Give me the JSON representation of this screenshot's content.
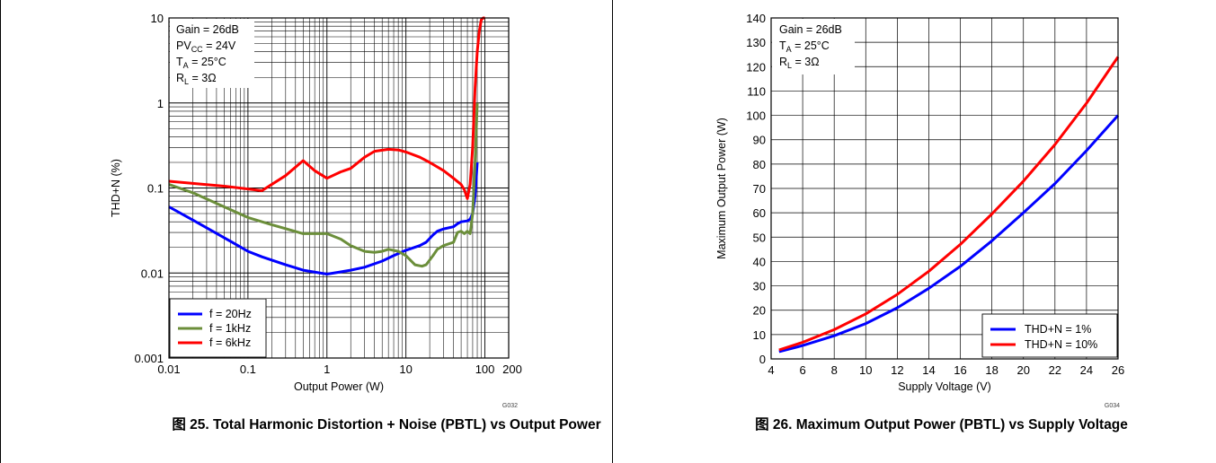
{
  "chart_data": [
    {
      "type": "line",
      "caption": "图 25. Total Harmonic Distortion + Noise (PBTL) vs Output Power",
      "xlabel": "Output Power (W)",
      "ylabel": "THD+N (%)",
      "xscale": "log",
      "yscale": "log",
      "xlim": [
        0.01,
        200
      ],
      "ylim": [
        0.001,
        10
      ],
      "xticks": [
        0.01,
        0.1,
        1,
        10,
        100,
        200
      ],
      "xtick_labels": [
        "0.01",
        "0.1",
        "1",
        "10",
        "100",
        "200"
      ],
      "yticks": [
        0.001,
        0.01,
        0.1,
        1,
        10
      ],
      "ytick_labels": [
        "0.001",
        "0.01",
        "0.1",
        "1",
        "10"
      ],
      "grid": true,
      "code": "G032",
      "legend_position": "bottom-left",
      "annotations": [
        {
          "text": "Gain = 26dB"
        },
        {
          "text": "PV",
          "sub": "CC",
          "rest": " = 24V"
        },
        {
          "text": "T",
          "sub": "A",
          "rest": " = 25°C"
        },
        {
          "text": "R",
          "sub": "L",
          "rest": " = 3Ω"
        }
      ],
      "series": [
        {
          "name": "f = 20Hz",
          "color": "#0000ff",
          "x": [
            0.01,
            0.02,
            0.05,
            0.1,
            0.15,
            0.3,
            0.5,
            1,
            1.5,
            2,
            3,
            5,
            7,
            10,
            15,
            18,
            22,
            25,
            30,
            40,
            45,
            50,
            60,
            65,
            70,
            75,
            80
          ],
          "y": [
            0.06,
            0.042,
            0.026,
            0.018,
            0.0155,
            0.0125,
            0.0108,
            0.0097,
            0.0103,
            0.0108,
            0.0117,
            0.0138,
            0.016,
            0.0185,
            0.021,
            0.023,
            0.028,
            0.031,
            0.033,
            0.035,
            0.038,
            0.04,
            0.041,
            0.043,
            0.05,
            0.08,
            0.2
          ]
        },
        {
          "name": "f = 1kHz",
          "color": "#6b8e3a",
          "x": [
            0.01,
            0.02,
            0.05,
            0.1,
            0.2,
            0.5,
            1,
            1.5,
            2,
            3,
            4,
            5,
            6,
            8,
            10,
            13,
            16,
            18,
            22,
            25,
            30,
            40,
            45,
            50,
            55,
            60,
            65,
            70,
            75,
            80
          ],
          "y": [
            0.11,
            0.088,
            0.06,
            0.045,
            0.037,
            0.029,
            0.029,
            0.025,
            0.021,
            0.018,
            0.0175,
            0.018,
            0.019,
            0.018,
            0.016,
            0.0125,
            0.012,
            0.0125,
            0.016,
            0.019,
            0.021,
            0.023,
            0.03,
            0.031,
            0.029,
            0.031,
            0.029,
            0.05,
            0.2,
            1.0
          ]
        },
        {
          "name": "f = 6kHz",
          "color": "#ff0000",
          "x": [
            0.01,
            0.05,
            0.15,
            0.3,
            0.5,
            0.7,
            1,
            1.5,
            2,
            3,
            4,
            6,
            8,
            10,
            15,
            20,
            30,
            40,
            50,
            55,
            60,
            65,
            70,
            75,
            80,
            85,
            90,
            95,
            100
          ],
          "y": [
            0.12,
            0.105,
            0.093,
            0.14,
            0.21,
            0.16,
            0.13,
            0.155,
            0.17,
            0.23,
            0.27,
            0.285,
            0.28,
            0.265,
            0.23,
            0.2,
            0.16,
            0.13,
            0.11,
            0.095,
            0.075,
            0.11,
            0.3,
            1.5,
            4.0,
            7.0,
            9.5,
            11,
            12
          ]
        }
      ]
    },
    {
      "type": "line",
      "caption": "图 26. Maximum Output Power (PBTL) vs Supply Voltage",
      "xlabel": "Supply Voltage (V)",
      "ylabel": "Maximum Output Power (W)",
      "xlim": [
        4,
        26
      ],
      "ylim": [
        0,
        140
      ],
      "xticks": [
        4,
        6,
        8,
        10,
        12,
        14,
        16,
        18,
        20,
        22,
        24,
        26
      ],
      "yticks": [
        0,
        10,
        20,
        30,
        40,
        50,
        60,
        70,
        80,
        90,
        100,
        110,
        120,
        130,
        140
      ],
      "grid": true,
      "code": "G034",
      "legend_position": "bottom-right",
      "annotations": [
        {
          "text": "Gain = 26dB"
        },
        {
          "text": "T",
          "sub": "A",
          "rest": " = 25°C"
        },
        {
          "text": "R",
          "sub": "L",
          "rest": " = 3Ω"
        }
      ],
      "series": [
        {
          "name": "THD+N = 1%",
          "color": "#0000ff",
          "x": [
            4.5,
            6,
            8,
            10,
            12,
            14,
            16,
            18,
            20,
            22,
            24,
            26
          ],
          "y": [
            3,
            5.5,
            9.5,
            14.5,
            21,
            29,
            38,
            48.5,
            60,
            72,
            85.5,
            100
          ]
        },
        {
          "name": "THD+N = 10%",
          "color": "#ff0000",
          "x": [
            4.5,
            6,
            8,
            10,
            12,
            14,
            16,
            18,
            20,
            22,
            24,
            26
          ],
          "y": [
            3.7,
            6.8,
            12,
            18.5,
            26.5,
            36,
            47,
            59.5,
            73,
            88,
            105,
            124
          ]
        }
      ]
    }
  ]
}
